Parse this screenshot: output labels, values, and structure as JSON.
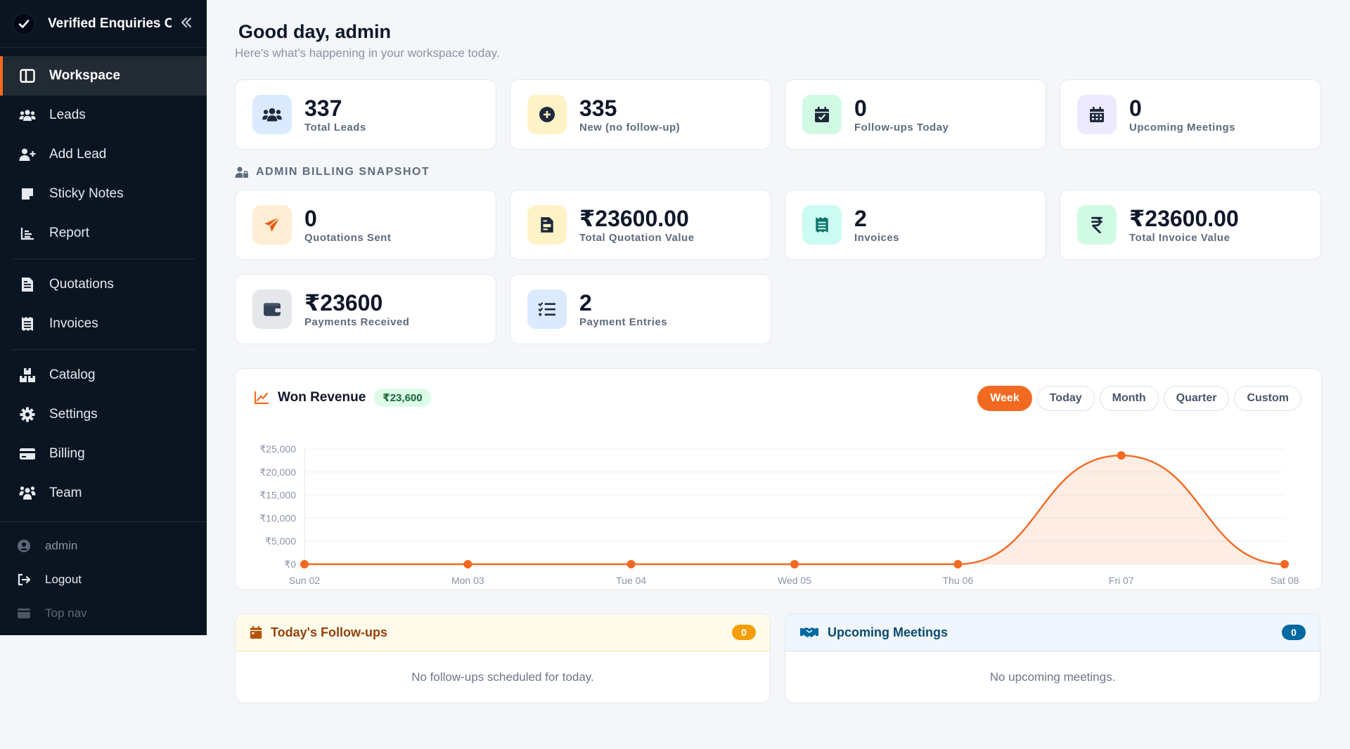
{
  "sidebar": {
    "brand": "Verified Enquiries C",
    "groups": [
      [
        {
          "label": "Workspace",
          "icon": "workspace-icon",
          "active": true
        },
        {
          "label": "Leads",
          "icon": "users-icon"
        },
        {
          "label": "Add Lead",
          "icon": "user-plus-icon"
        },
        {
          "label": "Sticky Notes",
          "icon": "sticky-note-icon"
        },
        {
          "label": "Report",
          "icon": "report-icon"
        }
      ],
      [
        {
          "label": "Quotations",
          "icon": "document-icon"
        },
        {
          "label": "Invoices",
          "icon": "receipt-icon"
        }
      ],
      [
        {
          "label": "Catalog",
          "icon": "boxes-icon"
        },
        {
          "label": "Settings",
          "icon": "gear-icon"
        },
        {
          "label": "Billing",
          "icon": "credit-card-icon"
        },
        {
          "label": "Team",
          "icon": "team-icon"
        }
      ]
    ],
    "user": "admin",
    "logout": "Logout",
    "top_nav": "Top nav"
  },
  "header": {
    "greeting": "Good day, admin",
    "subtitle": "Here's what's happening in your workspace today."
  },
  "stats": [
    {
      "value": "337",
      "label": "Total Leads",
      "icon": "users-icon",
      "bg": "#dbeafe",
      "fg": "#1e293b"
    },
    {
      "value": "335",
      "label": "New (no follow-up)",
      "icon": "plus-circle-icon",
      "bg": "#fef3c7",
      "fg": "#1e293b"
    },
    {
      "value": "0",
      "label": "Follow-ups Today",
      "icon": "calendar-check-icon",
      "bg": "#d1fae5",
      "fg": "#1e293b"
    },
    {
      "value": "0",
      "label": "Upcoming Meetings",
      "icon": "calendar-icon",
      "bg": "#ede9fe",
      "fg": "#1e293b"
    }
  ],
  "billing": {
    "section_label": "ADMIN BILLING SNAPSHOT",
    "cards": [
      {
        "value": "0",
        "label": "Quotations Sent",
        "icon": "paper-plane-icon",
        "bg": "#ffedd5",
        "fg": "#ea580c"
      },
      {
        "value": "₹23600.00",
        "label": "Total Quotation Value",
        "icon": "file-invoice-icon",
        "bg": "#fef3c7",
        "fg": "#1e293b"
      },
      {
        "value": "2",
        "label": "Invoices",
        "icon": "receipt-icon",
        "bg": "#ccfbf1",
        "fg": "#0f766e"
      },
      {
        "value": "₹23600.00",
        "label": "Total Invoice Value",
        "icon": "rupee-icon",
        "bg": "#d1fae5",
        "fg": "#1e293b"
      },
      {
        "value": "₹23600",
        "label": "Payments Received",
        "icon": "wallet-icon",
        "bg": "#e5e7eb",
        "fg": "#334155"
      },
      {
        "value": "2",
        "label": "Payment Entries",
        "icon": "list-check-icon",
        "bg": "#dbeafe",
        "fg": "#1e293b"
      }
    ]
  },
  "revenue": {
    "title": "Won Revenue",
    "badge": "₹23,600",
    "tabs": [
      {
        "label": "Week",
        "active": true
      },
      {
        "label": "Today"
      },
      {
        "label": "Month"
      },
      {
        "label": "Quarter"
      },
      {
        "label": "Custom"
      }
    ]
  },
  "chart_data": {
    "type": "area",
    "x": [
      "Sun 02",
      "Mon 03",
      "Tue 04",
      "Wed 05",
      "Thu 06",
      "Fri 07",
      "Sat 08"
    ],
    "values": [
      0,
      0,
      0,
      0,
      0,
      23600,
      0
    ],
    "yticks": [
      "₹0",
      "₹5,000",
      "₹10,000",
      "₹15,000",
      "₹20,000",
      "₹25,000"
    ],
    "ylim": [
      0,
      25000
    ],
    "grid": true,
    "color": "#f26a21"
  },
  "followups": {
    "title": "Today's Follow-ups",
    "count": "0",
    "empty": "No follow-ups scheduled for today."
  },
  "meetings": {
    "title": "Upcoming Meetings",
    "count": "0",
    "empty": "No upcoming meetings."
  }
}
